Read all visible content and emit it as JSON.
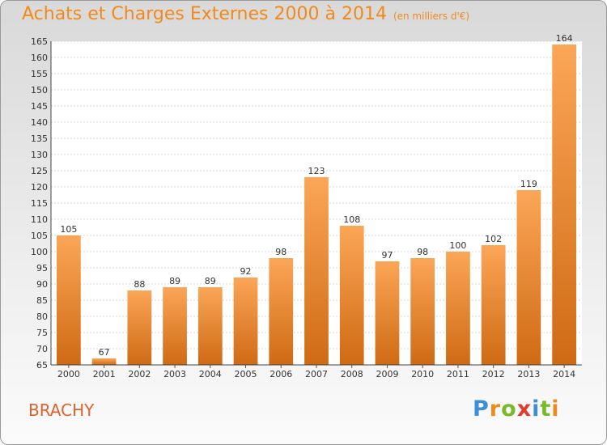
{
  "title": "Achats et Charges Externes 2000 à 2014",
  "subtitle": "(en milliers d'€)",
  "commune": "BRACHY",
  "logo": {
    "text": "Proxiti",
    "letters": [
      "P",
      "r",
      "o",
      "x",
      "i",
      "t",
      "i"
    ],
    "colors": [
      "#3d8fd6",
      "#ef8a1e",
      "#7ab92a",
      "#e23b2e",
      "#3d8fd6",
      "#7ab92a",
      "#ef8a1e"
    ]
  },
  "colors": {
    "title": "#f08a1c",
    "commune": "#e0622a",
    "bar_top": "#fba657",
    "bar_bottom": "#cf6a14"
  },
  "chart_data": {
    "type": "bar",
    "categories": [
      "2000",
      "2001",
      "2002",
      "2003",
      "2004",
      "2005",
      "2006",
      "2007",
      "2008",
      "2009",
      "2010",
      "2011",
      "2012",
      "2013",
      "2014"
    ],
    "values": [
      105,
      67,
      88,
      89,
      89,
      92,
      98,
      123,
      108,
      97,
      98,
      100,
      102,
      119,
      164
    ],
    "ylim": [
      65,
      165
    ],
    "yticks": [
      65,
      70,
      75,
      80,
      85,
      90,
      95,
      100,
      105,
      110,
      115,
      120,
      125,
      130,
      135,
      140,
      145,
      150,
      155,
      160,
      165
    ],
    "grid": true,
    "data_labels": true
  }
}
